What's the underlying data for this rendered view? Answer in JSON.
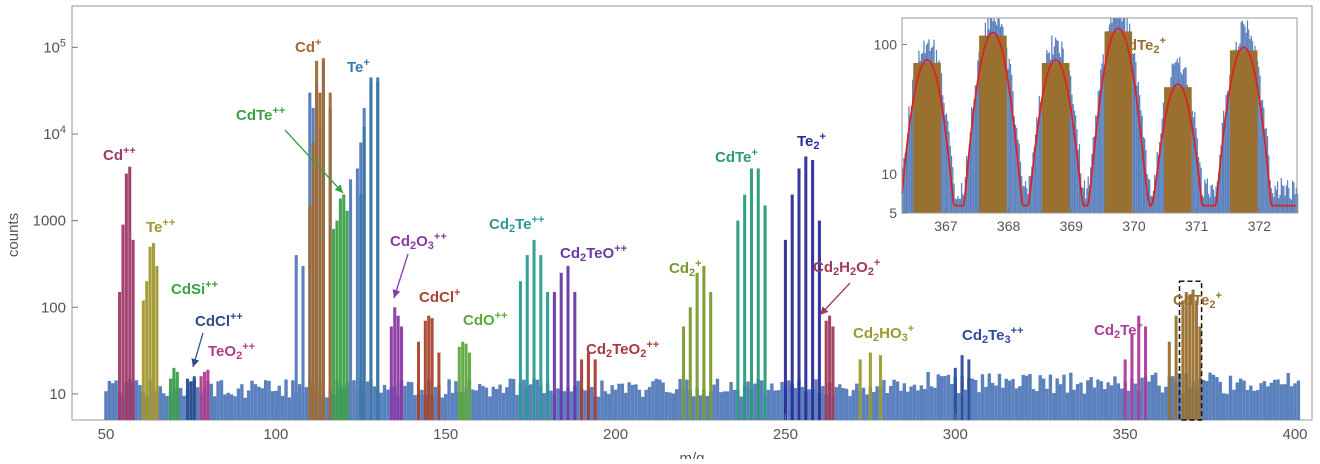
{
  "chart_data": [
    {
      "type": "bar",
      "title": "",
      "xlabel": "m/q",
      "ylabel": "counts",
      "x_scale": "linear",
      "y_scale": "log",
      "xlim": [
        40,
        405
      ],
      "ylim": [
        5,
        300000
      ],
      "x_ticks": [
        50,
        100,
        150,
        200,
        250,
        300,
        350,
        400
      ],
      "y_ticks": [
        {
          "value": 10,
          "label": "10"
        },
        {
          "value": 100,
          "label": "100"
        },
        {
          "value": 1000,
          "label": "1000"
        },
        {
          "value": 10000,
          "label": "10^4"
        },
        {
          "value": 100000,
          "label": "10^5"
        }
      ],
      "grid": false,
      "background_series_color": "#5a80bd",
      "background_peaks": [
        {
          "x": 112,
          "y": 40000
        },
        {
          "x": 113,
          "y": 12000
        },
        {
          "x": 114,
          "y": 70000
        },
        {
          "x": 116,
          "y": 20000
        },
        {
          "x": 110,
          "y": 30000
        },
        {
          "x": 111,
          "y": 20000
        },
        {
          "x": 122,
          "y": 3000
        },
        {
          "x": 124,
          "y": 4000
        },
        {
          "x": 125,
          "y": 8000
        },
        {
          "x": 126,
          "y": 20000
        },
        {
          "x": 128,
          "y": 40000
        },
        {
          "x": 130,
          "y": 40000
        },
        {
          "x": 106,
          "y": 400
        },
        {
          "x": 108,
          "y": 300
        }
      ],
      "annotations": [
        {
          "label": "Cd",
          "sup": "++",
          "color": "#a0386a",
          "peaks": [
            [
              54,
              150
            ],
            [
              55,
              900
            ],
            [
              56,
              3500
            ],
            [
              57,
              4200
            ],
            [
              58,
              600
            ]
          ]
        },
        {
          "label": "Te",
          "sup": "++",
          "color": "#a3962f",
          "peaks": [
            [
              61,
              120
            ],
            [
              62,
              200
            ],
            [
              63,
              500
            ],
            [
              64,
              550
            ],
            [
              65,
              300
            ]
          ]
        },
        {
          "label": "CdSi",
          "sup": "++",
          "color": "#3aa048",
          "peaks": [
            [
              69,
              15
            ],
            [
              70,
              20
            ],
            [
              71,
              18
            ]
          ]
        },
        {
          "label": "CdCl",
          "sup": "++",
          "color": "#2c4e8f",
          "peaks": [
            [
              74,
              15
            ],
            [
              75,
              14
            ],
            [
              76,
              16
            ]
          ]
        },
        {
          "label": "TeO",
          "sub": "2",
          "sup": "++",
          "color": "#b03a8e",
          "peaks": [
            [
              78,
              16
            ],
            [
              79,
              18
            ],
            [
              80,
              19
            ]
          ]
        },
        {
          "label": "Cd",
          "sup": "+",
          "color": "#a06c34",
          "peaks": [
            [
              110,
              1500
            ],
            [
              111,
              8000
            ],
            [
              112,
              70000
            ],
            [
              113,
              30000
            ],
            [
              114,
              75000
            ],
            [
              116,
              30000
            ]
          ]
        },
        {
          "label": "Te",
          "sup": "+",
          "color": "#3a77a6",
          "peaks": [
            [
              125,
              2000
            ],
            [
              126,
              12000
            ],
            [
              128,
              45000
            ],
            [
              130,
              45000
            ]
          ]
        },
        {
          "label": "CdTe",
          "sup": "++",
          "color": "#3aa048",
          "peaks": [
            [
              117,
              800
            ],
            [
              118,
              1000
            ],
            [
              119,
              1800
            ],
            [
              120,
              2000
            ],
            [
              121,
              1300
            ]
          ]
        },
        {
          "label": "Cd",
          "sub": "2",
          "tail": "O",
          "sub2": "3",
          "sup": "++",
          "color": "#8a3aa6",
          "peaks": [
            [
              134,
              60
            ],
            [
              135,
              100
            ],
            [
              136,
              80
            ],
            [
              137,
              60
            ]
          ]
        },
        {
          "label": "CdCl",
          "sup": "+",
          "color": "#a8452e",
          "peaks": [
            [
              142,
              40
            ],
            [
              144,
              70
            ],
            [
              145,
              80
            ],
            [
              146,
              75
            ],
            [
              148,
              30
            ]
          ]
        },
        {
          "label": "CdO",
          "sup": "++",
          "color": "#5ea83e",
          "peaks": [
            [
              154,
              35
            ],
            [
              155,
              40
            ],
            [
              156,
              38
            ],
            [
              157,
              30
            ]
          ]
        },
        {
          "label": "Cd",
          "sub": "2",
          "tail": "Te",
          "sup": "++",
          "color": "#2a9a94",
          "peaks": [
            [
              172,
              200
            ],
            [
              174,
              400
            ],
            [
              176,
              600
            ],
            [
              178,
              400
            ],
            [
              180,
              150
            ]
          ]
        },
        {
          "label": "Cd",
          "sub": "2",
          "tail": "TeO",
          "sup": "++",
          "color": "#6a3aa6",
          "peaks": [
            [
              182,
              150
            ],
            [
              184,
              250
            ],
            [
              186,
              300
            ],
            [
              188,
              150
            ]
          ]
        },
        {
          "label": "Cd",
          "sub": "2",
          "tail": "TeO",
          "sub2": "2",
          "sup": "++",
          "color": "#a83a3a",
          "peaks": [
            [
              190,
              25
            ],
            [
              192,
              30
            ],
            [
              194,
              25
            ]
          ]
        },
        {
          "label": "Cd",
          "sub": "2",
          "sup": "+",
          "color": "#7a9a30",
          "peaks": [
            [
              220,
              60
            ],
            [
              222,
              100
            ],
            [
              224,
              250
            ],
            [
              226,
              300
            ],
            [
              228,
              150
            ]
          ]
        },
        {
          "label": "CdTe",
          "sup": "+",
          "color": "#2a9a7a",
          "peaks": [
            [
              236,
              1000
            ],
            [
              238,
              2000
            ],
            [
              240,
              4000
            ],
            [
              242,
              4000
            ],
            [
              244,
              1500
            ]
          ]
        },
        {
          "label": "Te",
          "sub": "2",
          "sup": "+",
          "color": "#2c2c9a",
          "peaks": [
            [
              250,
              600
            ],
            [
              252,
              2000
            ],
            [
              254,
              4000
            ],
            [
              256,
              5500
            ],
            [
              258,
              5000
            ],
            [
              260,
              1000
            ]
          ]
        },
        {
          "label": "Cd",
          "sub": "2",
          "tail": "H",
          "sub2": "2",
          "tail2": "O",
          "sub3": "2",
          "sup": "+",
          "color": "#a03a5a",
          "peaks": [
            [
              262,
              70
            ],
            [
              263,
              80
            ],
            [
              264,
              60
            ]
          ]
        },
        {
          "label": "Cd",
          "sub": "2",
          "tail": "HO",
          "sub2": "3",
          "sup": "+",
          "color": "#9a9a30",
          "peaks": [
            [
              272,
              25
            ],
            [
              275,
              30
            ],
            [
              278,
              28
            ]
          ]
        },
        {
          "label": "Cd",
          "sub": "2",
          "tail": "Te",
          "sub2": "3",
          "sup": "++",
          "color": "#2c4e9a",
          "peaks": [
            [
              300,
              20
            ],
            [
              302,
              28
            ],
            [
              304,
              25
            ]
          ]
        },
        {
          "label": "Cd",
          "sub": "2",
          "tail": "Te",
          "sup": "+",
          "color": "#b03a9a",
          "peaks": [
            [
              350,
              25
            ],
            [
              352,
              50
            ],
            [
              354,
              80
            ],
            [
              356,
              60
            ]
          ]
        },
        {
          "label": "CdTe",
          "sub": "2",
          "sup": "+",
          "color": "#9a7030",
          "peaks": [
            [
              363,
              40
            ],
            [
              365,
              80
            ],
            [
              367,
              120
            ],
            [
              368,
              150
            ],
            [
              369,
              140
            ],
            [
              370,
              160
            ],
            [
              371,
              120
            ],
            [
              372,
              60
            ]
          ]
        }
      ],
      "highlight_box": {
        "x_range": [
          366,
          372.5
        ],
        "y_range": [
          5,
          200
        ]
      }
    },
    {
      "type": "bar",
      "title": "CdTe2+",
      "xlim": [
        366.3,
        372.6
      ],
      "ylim": [
        5,
        160
      ],
      "y_scale": "log",
      "x_ticks": [
        367,
        368,
        369,
        370,
        371,
        372
      ],
      "y_ticks": [
        {
          "value": 5,
          "label": "5"
        },
        {
          "value": 10,
          "label": "10"
        },
        {
          "value": 100,
          "label": "100"
        }
      ],
      "peaks_x": [
        366.7,
        367.75,
        368.75,
        369.75,
        370.7,
        371.75
      ],
      "peaks_y": [
        80,
        130,
        80,
        140,
        52,
        100
      ],
      "fit_line_color": "#dd2222",
      "bar_color_envelope": "#5a80bd",
      "bar_color_peak": "#9a7030"
    }
  ]
}
